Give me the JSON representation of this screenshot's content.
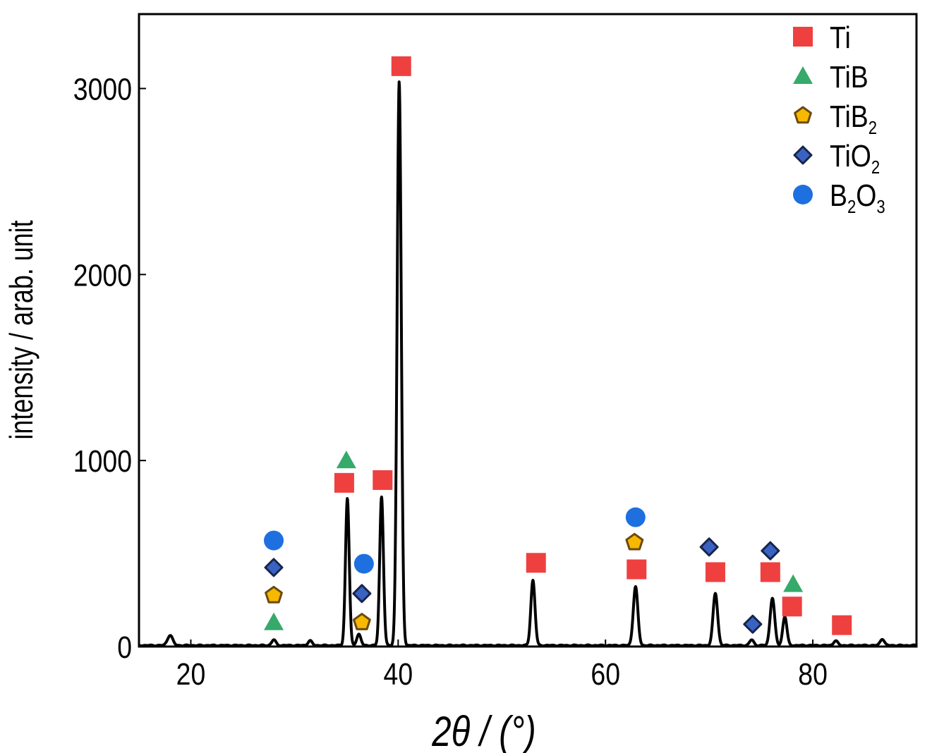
{
  "chart_data": {
    "type": "line",
    "title": "",
    "xlabel": "2θ / (°)",
    "ylabel": "intensity / arab. unit",
    "xlim": [
      15,
      90
    ],
    "ylim": [
      0,
      3400
    ],
    "xticks": [
      20,
      40,
      60,
      80
    ],
    "yticks": [
      0,
      1000,
      2000,
      3000
    ],
    "grid": false,
    "legend_position": "top-right",
    "colors": {
      "line": "#000000",
      "Ti": "#ef4040",
      "TiB": "#35aa6b",
      "TiB2_fill": "#f6b800",
      "TiB2_edge": "#6b4a10",
      "TiO2_fill": "#3a62c2",
      "TiO2_edge": "#16264a",
      "B2O3": "#1e70e0"
    },
    "peaks": [
      {
        "x": 18.0,
        "y": 55,
        "w": 0.25
      },
      {
        "x": 28.0,
        "y": 30,
        "w": 0.2
      },
      {
        "x": 31.5,
        "y": 25,
        "w": 0.2
      },
      {
        "x": 35.1,
        "y": 790,
        "w": 0.18
      },
      {
        "x": 36.2,
        "y": 60,
        "w": 0.2
      },
      {
        "x": 38.4,
        "y": 800,
        "w": 0.18
      },
      {
        "x": 40.1,
        "y": 3030,
        "w": 0.2
      },
      {
        "x": 53.0,
        "y": 350,
        "w": 0.2
      },
      {
        "x": 62.9,
        "y": 315,
        "w": 0.22
      },
      {
        "x": 70.6,
        "y": 280,
        "w": 0.22
      },
      {
        "x": 74.1,
        "y": 30,
        "w": 0.2
      },
      {
        "x": 76.1,
        "y": 255,
        "w": 0.22
      },
      {
        "x": 77.3,
        "y": 155,
        "w": 0.2
      },
      {
        "x": 82.2,
        "y": 25,
        "w": 0.2
      },
      {
        "x": 86.7,
        "y": 35,
        "w": 0.2
      }
    ],
    "series": [
      {
        "name": "Ti",
        "label": "Ti",
        "sub": "",
        "tail": "",
        "marker": "square",
        "points": [
          [
            34.8,
            880
          ],
          [
            38.5,
            895
          ],
          [
            40.3,
            3120
          ],
          [
            53.3,
            450
          ],
          [
            63.0,
            415
          ],
          [
            70.6,
            400
          ],
          [
            75.9,
            400
          ],
          [
            78.0,
            215
          ],
          [
            82.8,
            115
          ]
        ]
      },
      {
        "name": "TiB",
        "label": "TiB",
        "sub": "",
        "tail": "",
        "marker": "triangle",
        "points": [
          [
            28.0,
            130
          ],
          [
            35.0,
            1000
          ],
          [
            78.1,
            335
          ]
        ]
      },
      {
        "name": "TiB2",
        "label": "TiB",
        "sub": "2",
        "tail": "",
        "marker": "pentagon",
        "points": [
          [
            28.0,
            275
          ],
          [
            36.5,
            130
          ],
          [
            62.8,
            560
          ]
        ]
      },
      {
        "name": "TiO2",
        "label": "TiO",
        "sub": "2",
        "tail": "",
        "marker": "diamond",
        "points": [
          [
            28.0,
            425
          ],
          [
            36.5,
            285
          ],
          [
            70.0,
            535
          ],
          [
            74.2,
            120
          ],
          [
            75.9,
            515
          ]
        ]
      },
      {
        "name": "B2O3",
        "label": "B",
        "sub": "2",
        "tail": "O",
        "marker": "circle",
        "points": [
          [
            28.0,
            570
          ],
          [
            36.7,
            445
          ],
          [
            62.9,
            695
          ]
        ]
      }
    ]
  }
}
